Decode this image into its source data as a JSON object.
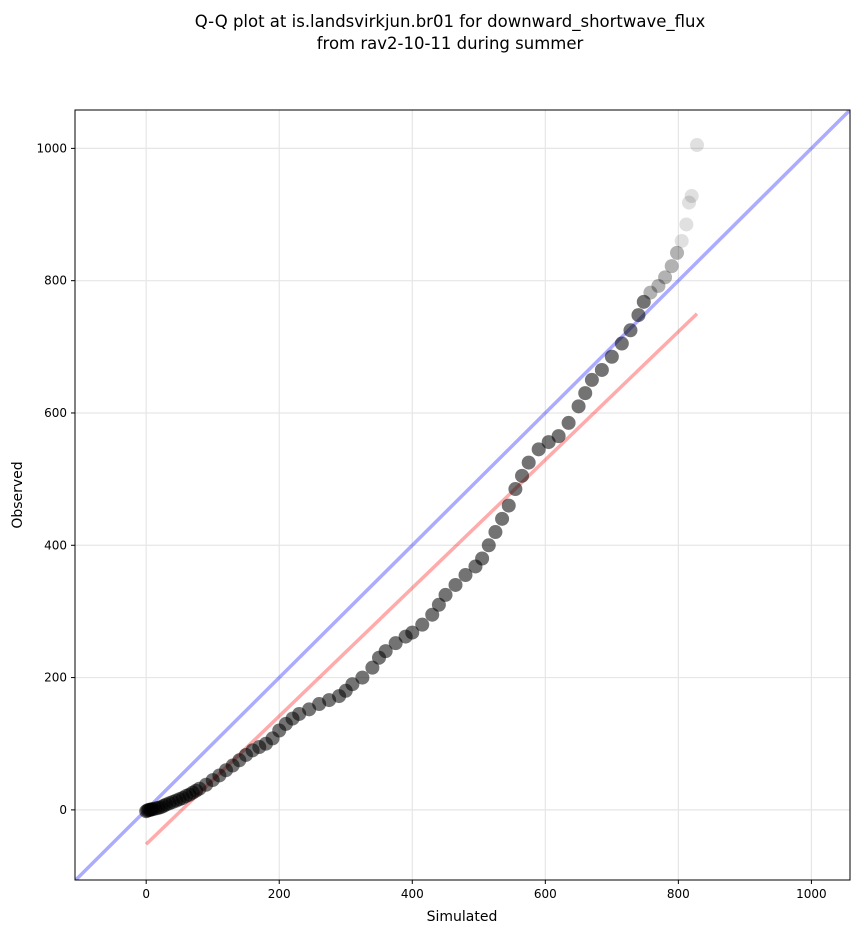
{
  "chart_data": {
    "type": "scatter",
    "title": [
      "Q-Q plot at is.landsvirkjun.br01 for downward_shortwave_flux",
      "from rav2-10-11 during summer"
    ],
    "xlabel": "Simulated",
    "ylabel": "Observed",
    "xlim": [
      -107,
      1058
    ],
    "ylim": [
      -106,
      1058
    ],
    "xticks": [
      0,
      200,
      400,
      600,
      800,
      1000
    ],
    "yticks": [
      0,
      200,
      400,
      600,
      800,
      1000
    ],
    "grid": true,
    "colors": {
      "points": "#000000",
      "identity_line": "#0000ff",
      "fit_line": "#ff0000"
    },
    "identity_line": {
      "from": [
        -107,
        -107
      ],
      "to": [
        1058,
        1058
      ]
    },
    "fit_line": {
      "from": [
        0,
        -52
      ],
      "to": [
        828,
        750
      ]
    },
    "points": [
      [
        0,
        -2
      ],
      [
        2,
        -1
      ],
      [
        4,
        0
      ],
      [
        6,
        0
      ],
      [
        8,
        1
      ],
      [
        10,
        1
      ],
      [
        14,
        2
      ],
      [
        18,
        3
      ],
      [
        22,
        4
      ],
      [
        26,
        6
      ],
      [
        30,
        8
      ],
      [
        35,
        10
      ],
      [
        40,
        12
      ],
      [
        45,
        14
      ],
      [
        50,
        16
      ],
      [
        55,
        18
      ],
      [
        60,
        21
      ],
      [
        65,
        23
      ],
      [
        70,
        26
      ],
      [
        75,
        29
      ],
      [
        80,
        32
      ],
      [
        90,
        38
      ],
      [
        100,
        45
      ],
      [
        110,
        52
      ],
      [
        120,
        60
      ],
      [
        130,
        67
      ],
      [
        140,
        75
      ],
      [
        150,
        83
      ],
      [
        160,
        90
      ],
      [
        170,
        95
      ],
      [
        180,
        100
      ],
      [
        190,
        108
      ],
      [
        200,
        120
      ],
      [
        210,
        130
      ],
      [
        220,
        138
      ],
      [
        230,
        145
      ],
      [
        245,
        152
      ],
      [
        260,
        160
      ],
      [
        275,
        166
      ],
      [
        290,
        172
      ],
      [
        300,
        180
      ],
      [
        310,
        190
      ],
      [
        325,
        200
      ],
      [
        340,
        215
      ],
      [
        350,
        230
      ],
      [
        360,
        240
      ],
      [
        375,
        252
      ],
      [
        390,
        262
      ],
      [
        400,
        268
      ],
      [
        415,
        280
      ],
      [
        430,
        295
      ],
      [
        440,
        310
      ],
      [
        450,
        325
      ],
      [
        465,
        340
      ],
      [
        480,
        355
      ],
      [
        495,
        368
      ],
      [
        505,
        380
      ],
      [
        515,
        400
      ],
      [
        525,
        420
      ],
      [
        535,
        440
      ],
      [
        545,
        460
      ],
      [
        555,
        485
      ],
      [
        565,
        505
      ],
      [
        575,
        525
      ],
      [
        590,
        545
      ],
      [
        605,
        556
      ],
      [
        620,
        565
      ],
      [
        635,
        585
      ],
      [
        650,
        610
      ],
      [
        660,
        630
      ],
      [
        670,
        650
      ],
      [
        685,
        665
      ],
      [
        700,
        685
      ],
      [
        715,
        705
      ],
      [
        728,
        725
      ],
      [
        740,
        748
      ],
      [
        748,
        768
      ],
      [
        758,
        782
      ],
      [
        770,
        792
      ],
      [
        780,
        805
      ],
      [
        790,
        822
      ],
      [
        798,
        842
      ],
      [
        805,
        860
      ],
      [
        812,
        885
      ],
      [
        816,
        918
      ],
      [
        820,
        928
      ],
      [
        828,
        1005
      ]
    ]
  }
}
